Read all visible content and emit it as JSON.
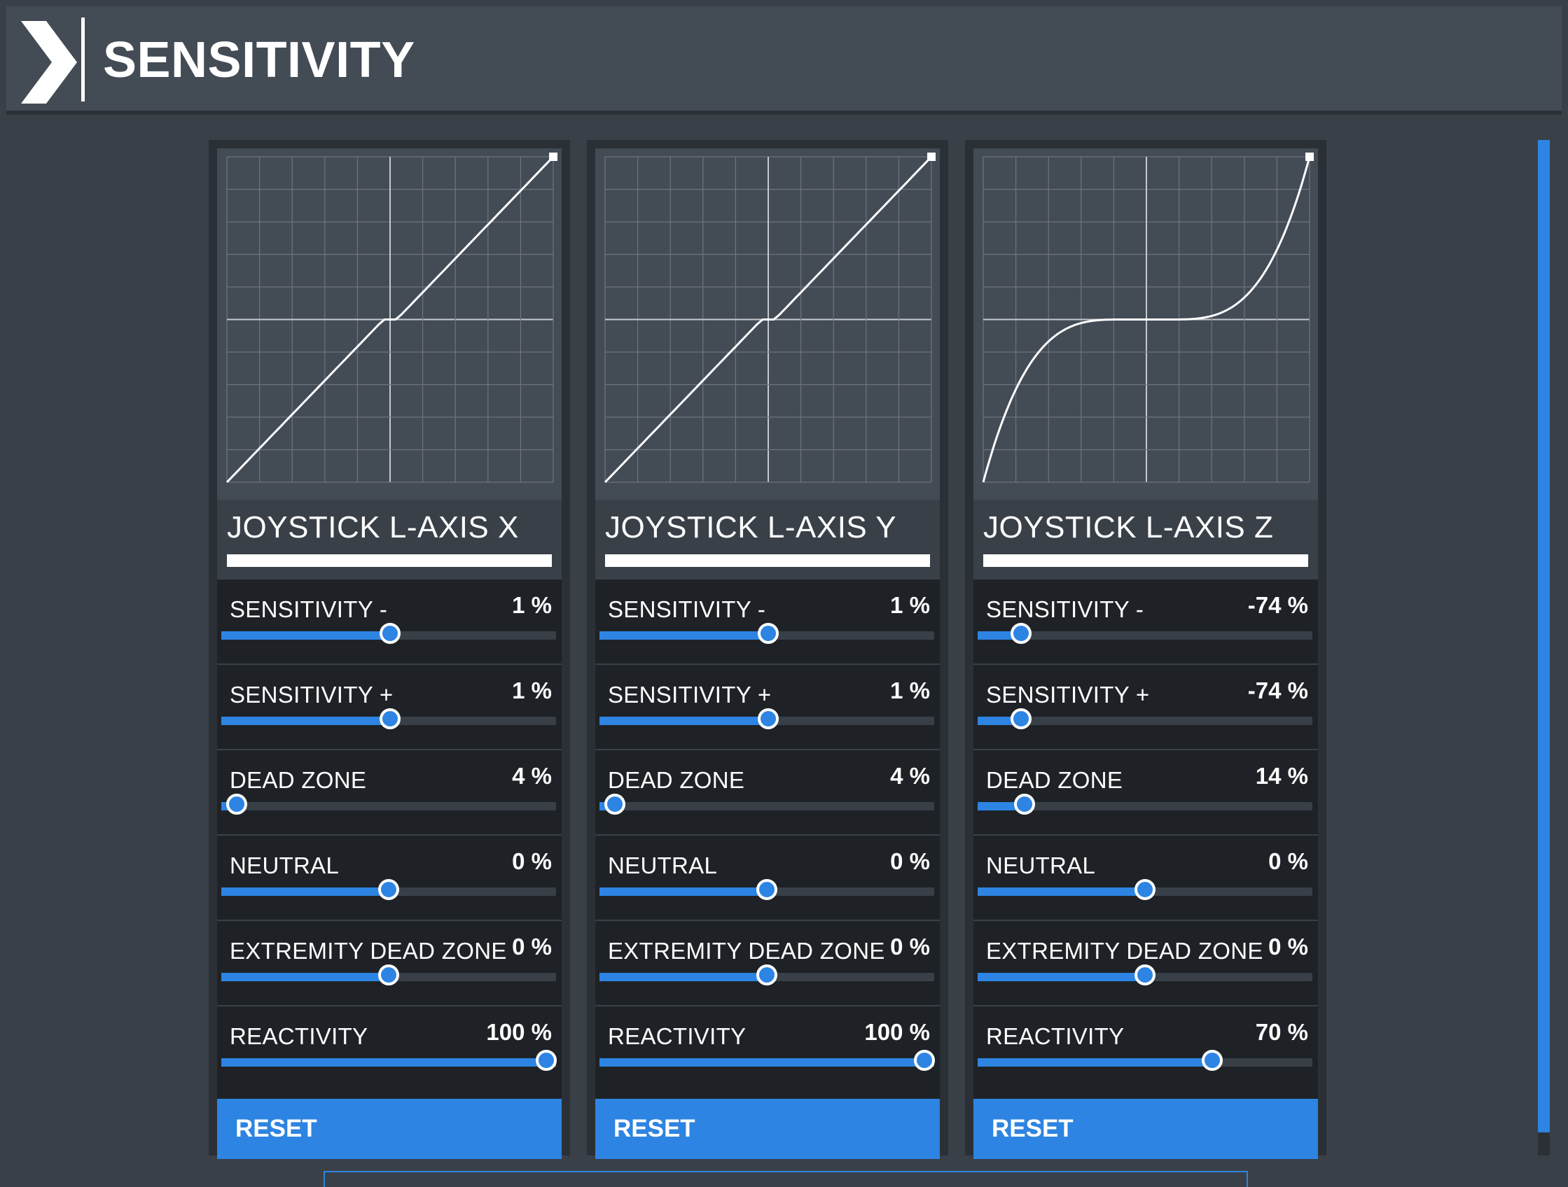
{
  "header": {
    "title": "SENSITIVITY",
    "icon": "chevron-right-icon"
  },
  "colors": {
    "accent": "#2d84e2",
    "panel_dark": "#1e2227",
    "panel_mid": "#434b55",
    "background": "#3a4048"
  },
  "axes": [
    {
      "title": "JOYSTICK L-AXIS X",
      "curve": "linear",
      "settings": [
        {
          "label": "SENSITIVITY -",
          "value": "1 %",
          "level": 0.505
        },
        {
          "label": "SENSITIVITY +",
          "value": "1 %",
          "level": 0.505
        },
        {
          "label": "DEAD ZONE",
          "value": "4 %",
          "level": 0.04
        },
        {
          "label": "NEUTRAL",
          "value": "0 %",
          "level": 0.5
        },
        {
          "label": "EXTREMITY DEAD ZONE",
          "value": "0 %",
          "level": 0.5
        },
        {
          "label": "REACTIVITY",
          "value": "100 %",
          "level": 1.0
        }
      ],
      "reset_label": "RESET"
    },
    {
      "title": "JOYSTICK L-AXIS Y",
      "curve": "linear",
      "settings": [
        {
          "label": "SENSITIVITY -",
          "value": "1 %",
          "level": 0.505
        },
        {
          "label": "SENSITIVITY +",
          "value": "1 %",
          "level": 0.505
        },
        {
          "label": "DEAD ZONE",
          "value": "4 %",
          "level": 0.04
        },
        {
          "label": "NEUTRAL",
          "value": "0 %",
          "level": 0.5
        },
        {
          "label": "EXTREMITY DEAD ZONE",
          "value": "0 %",
          "level": 0.5
        },
        {
          "label": "REACTIVITY",
          "value": "100 %",
          "level": 1.0
        }
      ],
      "reset_label": "RESET"
    },
    {
      "title": "JOYSTICK L-AXIS Z",
      "curve": "cubic",
      "settings": [
        {
          "label": "SENSITIVITY -",
          "value": "-74 %",
          "level": 0.13
        },
        {
          "label": "SENSITIVITY +",
          "value": "-74 %",
          "level": 0.13
        },
        {
          "label": "DEAD ZONE",
          "value": "14 %",
          "level": 0.14
        },
        {
          "label": "NEUTRAL",
          "value": "0 %",
          "level": 0.5
        },
        {
          "label": "EXTREMITY DEAD ZONE",
          "value": "0 %",
          "level": 0.5
        },
        {
          "label": "REACTIVITY",
          "value": "70 %",
          "level": 0.7
        }
      ],
      "reset_label": "RESET"
    }
  ]
}
